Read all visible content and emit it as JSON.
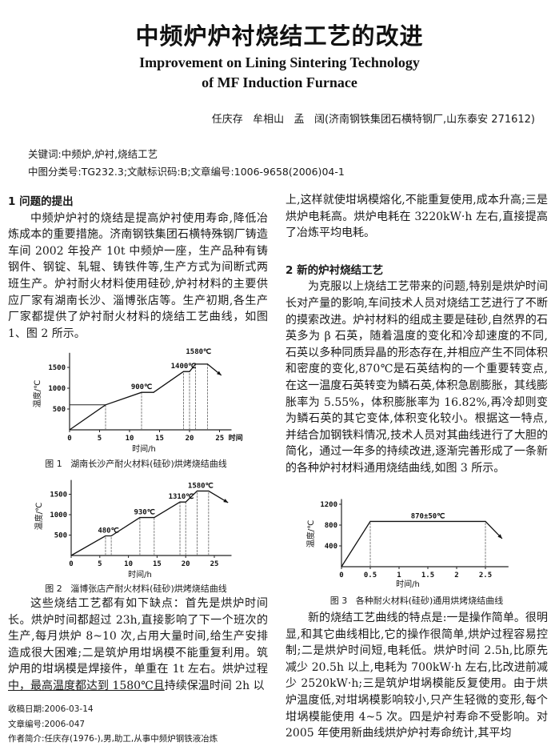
{
  "header": {
    "title_cn": "中频炉炉衬烧结工艺的改进",
    "title_en_line1": "Improvement on Lining Sintering Technology",
    "title_en_line2": "of MF Induction Furnace",
    "authors": "任庆存   牟相山   孟   阔(济南钢铁集团石横特钢厂,山东泰安 271612)",
    "keywords": "关键词:中频炉,炉衬,烧结工艺",
    "classification": "中图分类号:TG232.3;文献标识码:B;文章编号:1006-9658(2006)04-1"
  },
  "left": {
    "heading1": "1   问题的提出",
    "para1": "中频炉炉衬的烧结是提高炉衬使用寿命,降低冶炼成本的重要措施。济南钢铁集团石横特殊钢厂铸造车间 2002 年投产 10t 中频炉一座，生产品种有铸钢件、钢锭、轧辊、铸铁件等,生产方式为间断式两班生产。炉衬耐火材料使用硅砂,炉衬材料的主要供应厂家有湖南长沙、淄博张店等。生产初期,各生产厂家都提供了炉衬耐火材料的烧结工艺曲线，如图 1、图 2 所示。",
    "para2_a": "这些烧结工艺都有如下缺点：首先是烘炉时间长。烘炉时间都超过 23h,直接影响了下一个班次的生产,每月烘炉 8~10 次,占用大量时间,给生产安排造成很大困难;二是筑炉用坩埚模不能重复利用。筑炉用的坩埚模是焊接件，单重在 1t 左右。烘炉过程",
    "para2_u": "中，最高温度都达到 1580℃且",
    "para2_b": "持续保温时间 2h 以",
    "footnotes": [
      "收稿日期:2006-03-14",
      "文章编号:2006-047",
      "作者简介:任庆存(1976-),男,助工,从事中频炉钢铁液冶炼"
    ]
  },
  "right": {
    "para0": "上,这样就使坩埚模熔化,不能重复使用,成本升高;三是烘炉电耗高。烘炉电耗在 3220kW·h 左右,直接提高了冶炼平均电耗。",
    "heading2": "2   新的炉衬烧结工艺",
    "para1": "为克服以上烧结工艺带来的问题,特别是烘炉时间长对产量的影响,车间技术人员对烧结工艺进行了不断的摸索改进。炉衬材料的组成主要是硅砂,自然界的石英多为 β 石英，随着温度的变化和冷却速度的不同,石英以多种同质异晶的形态存在,并相应产生不同体积和密度的变化,870℃是石英结构的一个重要转变点,在这一温度石英转变为鳞石英,体积急剧膨胀，其线膨胀率为 5.55%，体积膨胀率为 16.82%,再冷却则变为鳞石英的其它变体,体积变化较小。根据这一特点,并结合加钢铁料情况,技术人员对其曲线进行了大胆的简化，通过一年多的持续改进,逐渐完善形成了一条新的各种炉衬材料通用烧结曲线,如图 3 所示。",
    "para2": "新的烧结工艺曲线的特点是:一是操作简单。很明显,和其它曲线相比,它的操作很简单,烘炉过程容易控制;二是烘炉时间短,电耗低。烘炉时间 2.5h,比原先减少 20.5h 以上,电耗为 700kW·h 左右,比改进前减少 2520kW·h;三是筑炉坩埚模能反复使用。由于烘炉温度低,对坩埚模影响较小,只产生轻微的变形,每个坩埚模能使用 4~5 次。四是炉衬寿命不受影响。对 2005 年使用新曲线烘炉炉衬寿命统计,其平均"
  },
  "chart_data": [
    {
      "type": "line",
      "title": "图 1   湖南长沙产耐火材料(硅砂)烘烤烧结曲线",
      "xlabel": "时间/h",
      "ylabel": "温度/℃",
      "xticks": [
        0,
        5,
        10,
        15,
        20,
        25
      ],
      "xtick_labels": [
        "0",
        "5",
        "10",
        "15",
        "20",
        "25 时间"
      ],
      "yticks": [
        500,
        1000,
        1500
      ],
      "ytick_labels": [
        "500",
        "1000",
        "1500"
      ],
      "x": [
        0,
        6,
        12,
        14,
        19,
        20,
        21,
        23
      ],
      "y": [
        0,
        600,
        900,
        900,
        1400,
        1400,
        1580,
        1580
      ],
      "arrow_end": {
        "x": 25.3,
        "y": 1310
      },
      "reference_line": {
        "y": 600,
        "x_from": 0,
        "x_to": 6
      },
      "drop_lines_x": [
        6,
        12,
        19,
        20,
        21,
        23
      ],
      "annotations": [
        {
          "text": "900℃",
          "x": 12,
          "y": 900
        },
        {
          "text": "1400℃",
          "x": 19,
          "y": 1400
        },
        {
          "text": "1580℃",
          "x": 21.5,
          "y": 1580
        }
      ],
      "grid": false
    },
    {
      "type": "line",
      "title": "图 2   淄博张店产耐火材料(硅砂)烘烤烧结曲线",
      "xlabel": "时间/h",
      "ylabel": "温度/℃",
      "xticks": [
        0,
        5,
        10,
        15,
        20,
        25
      ],
      "xtick_labels": [
        "0",
        "5",
        "10",
        "15",
        "20",
        "25"
      ],
      "yticks": [
        500,
        1000,
        1500
      ],
      "ytick_labels": [
        "500",
        "1000",
        "1500"
      ],
      "x": [
        0,
        6,
        7,
        12,
        14.5,
        19,
        20,
        22,
        24
      ],
      "y": [
        0,
        480,
        480,
        930,
        930,
        1310,
        1310,
        1580,
        1580
      ],
      "arrow_end": {
        "x": 27.4,
        "y": 1295
      },
      "drop_lines_x": [
        6,
        7,
        12,
        14.5,
        19,
        20,
        22,
        24
      ],
      "annotations": [
        {
          "text": "480℃",
          "x": 6.5,
          "y": 480
        },
        {
          "text": "930℃",
          "x": 12.8,
          "y": 930
        },
        {
          "text": "1310℃",
          "x": 19.2,
          "y": 1310
        },
        {
          "text": "1580℃",
          "x": 22.6,
          "y": 1580
        }
      ],
      "grid": false
    },
    {
      "type": "line",
      "title": "图 3   各种耐火材料(硅砂)通用烘烤烧结曲线",
      "xlabel": "时间/h",
      "ylabel": "温度/℃",
      "xticks": [
        0,
        0.5,
        1,
        1.5,
        2,
        2.5
      ],
      "xtick_labels": [
        "0",
        "0.5",
        "1",
        "1.5",
        "2",
        "2.5"
      ],
      "yticks": [
        400,
        800,
        1200
      ],
      "ytick_labels": [
        "400",
        "800",
        "1200"
      ],
      "x": [
        0,
        0.5,
        2.5
      ],
      "y": [
        0,
        870,
        870
      ],
      "arrow_end": {
        "x": 2.79,
        "y": 540
      },
      "drop_lines_x": [
        0.5,
        2.5
      ],
      "annotations": [
        {
          "text": "870±50℃",
          "x": 1.5,
          "y": 870
        }
      ],
      "grid": false
    }
  ]
}
